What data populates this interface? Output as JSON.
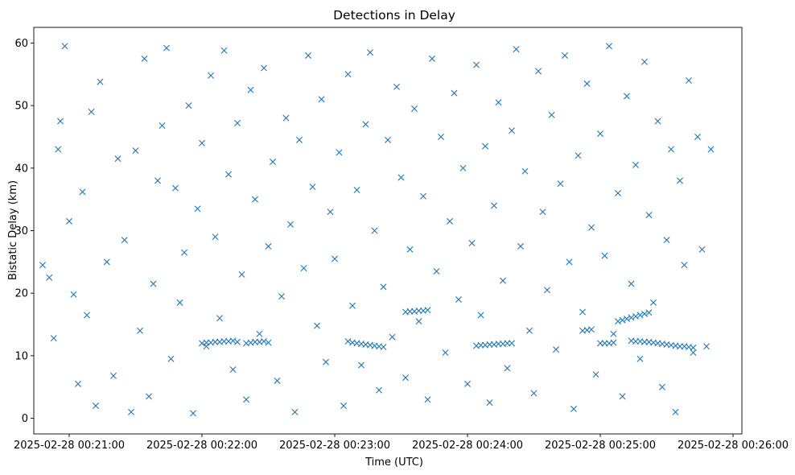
{
  "chart_data": {
    "type": "scatter",
    "title": "Detections in Delay",
    "xlabel": "Time (UTC)",
    "ylabel": "Bistatic Delay (km)",
    "marker": "x",
    "color": "#1f77b4",
    "grid": false,
    "xlim": [
      "2025-02-28 00:20:44",
      "2025-02-28 00:26:04"
    ],
    "ylim": [
      -2.5,
      62.5
    ],
    "xticks": [
      "2025-02-28 00:21:00",
      "2025-02-28 00:22:00",
      "2025-02-28 00:23:00",
      "2025-02-28 00:24:00",
      "2025-02-28 00:25:00",
      "2025-02-28 00:26:00"
    ],
    "yticks": [
      "0",
      "10",
      "20",
      "30",
      "40",
      "50",
      "60"
    ],
    "series": [
      {
        "points": [
          [
            "00:20:48",
            24.5
          ],
          [
            "00:20:51",
            22.5
          ],
          [
            "00:20:53",
            12.8
          ],
          [
            "00:20:55",
            43.0
          ],
          [
            "00:20:56",
            47.5
          ],
          [
            "00:20:58",
            59.5
          ],
          [
            "00:21:00",
            31.5
          ],
          [
            "00:21:02",
            19.8
          ],
          [
            "00:21:04",
            5.5
          ],
          [
            "00:21:06",
            36.2
          ],
          [
            "00:21:08",
            16.5
          ],
          [
            "00:21:10",
            49.0
          ],
          [
            "00:21:12",
            2.0
          ],
          [
            "00:21:14",
            53.8
          ],
          [
            "00:21:17",
            25.0
          ],
          [
            "00:21:20",
            6.8
          ],
          [
            "00:21:22",
            41.5
          ],
          [
            "00:21:25",
            28.5
          ],
          [
            "00:21:28",
            1.0
          ],
          [
            "00:21:30",
            42.8
          ],
          [
            "00:21:32",
            14.0
          ],
          [
            "00:21:34",
            57.5
          ],
          [
            "00:21:36",
            3.5
          ],
          [
            "00:21:38",
            21.5
          ],
          [
            "00:21:40",
            38.0
          ],
          [
            "00:21:42",
            46.8
          ],
          [
            "00:21:44",
            59.2
          ],
          [
            "00:21:46",
            9.5
          ],
          [
            "00:21:48",
            36.8
          ],
          [
            "00:21:50",
            18.5
          ],
          [
            "00:21:52",
            26.5
          ],
          [
            "00:21:54",
            50.0
          ],
          [
            "00:21:56",
            0.8
          ],
          [
            "00:21:58",
            33.5
          ],
          [
            "00:22:00",
            44.0
          ],
          [
            "00:22:02",
            11.5
          ],
          [
            "00:22:04",
            54.8
          ],
          [
            "00:22:06",
            29.0
          ],
          [
            "00:22:08",
            16.0
          ],
          [
            "00:22:10",
            58.8
          ],
          [
            "00:22:12",
            39.0
          ],
          [
            "00:22:14",
            7.8
          ],
          [
            "00:22:16",
            47.2
          ],
          [
            "00:22:18",
            23.0
          ],
          [
            "00:22:20",
            3.0
          ],
          [
            "00:22:22",
            52.5
          ],
          [
            "00:22:24",
            35.0
          ],
          [
            "00:22:26",
            13.5
          ],
          [
            "00:22:28",
            56.0
          ],
          [
            "00:22:30",
            27.5
          ],
          [
            "00:22:32",
            41.0
          ],
          [
            "00:22:34",
            6.0
          ],
          [
            "00:22:36",
            19.5
          ],
          [
            "00:22:38",
            48.0
          ],
          [
            "00:22:40",
            31.0
          ],
          [
            "00:22:42",
            1.0
          ],
          [
            "00:22:44",
            44.5
          ],
          [
            "00:22:46",
            24.0
          ],
          [
            "00:22:48",
            58.0
          ],
          [
            "00:22:50",
            37.0
          ],
          [
            "00:22:52",
            14.8
          ],
          [
            "00:22:54",
            51.0
          ],
          [
            "00:22:56",
            9.0
          ],
          [
            "00:22:58",
            33.0
          ],
          [
            "00:23:00",
            25.5
          ],
          [
            "00:23:02",
            42.5
          ],
          [
            "00:23:04",
            2.0
          ],
          [
            "00:23:06",
            55.0
          ],
          [
            "00:23:08",
            18.0
          ],
          [
            "00:23:10",
            36.5
          ],
          [
            "00:23:12",
            8.5
          ],
          [
            "00:23:14",
            47.0
          ],
          [
            "00:23:16",
            58.5
          ],
          [
            "00:23:18",
            30.0
          ],
          [
            "00:23:20",
            4.5
          ],
          [
            "00:23:22",
            21.0
          ],
          [
            "00:23:24",
            44.5
          ],
          [
            "00:23:26",
            13.0
          ],
          [
            "00:23:28",
            53.0
          ],
          [
            "00:23:30",
            38.5
          ],
          [
            "00:23:32",
            6.5
          ],
          [
            "00:23:34",
            27.0
          ],
          [
            "00:23:36",
            49.5
          ],
          [
            "00:23:38",
            15.5
          ],
          [
            "00:23:40",
            35.5
          ],
          [
            "00:23:42",
            3.0
          ],
          [
            "00:23:44",
            57.5
          ],
          [
            "00:23:46",
            23.5
          ],
          [
            "00:23:48",
            45.0
          ],
          [
            "00:23:50",
            10.5
          ],
          [
            "00:23:52",
            31.5
          ],
          [
            "00:23:54",
            52.0
          ],
          [
            "00:23:56",
            19.0
          ],
          [
            "00:23:58",
            40.0
          ],
          [
            "00:24:00",
            5.5
          ],
          [
            "00:24:02",
            28.0
          ],
          [
            "00:24:04",
            56.5
          ],
          [
            "00:24:06",
            16.5
          ],
          [
            "00:24:08",
            43.5
          ],
          [
            "00:24:10",
            2.5
          ],
          [
            "00:24:12",
            34.0
          ],
          [
            "00:24:14",
            50.5
          ],
          [
            "00:24:16",
            22.0
          ],
          [
            "00:24:18",
            8.0
          ],
          [
            "00:24:20",
            46.0
          ],
          [
            "00:24:22",
            59.0
          ],
          [
            "00:24:24",
            27.5
          ],
          [
            "00:24:26",
            39.5
          ],
          [
            "00:24:28",
            14.0
          ],
          [
            "00:24:30",
            4.0
          ],
          [
            "00:24:32",
            55.5
          ],
          [
            "00:24:34",
            33.0
          ],
          [
            "00:24:36",
            20.5
          ],
          [
            "00:24:38",
            48.5
          ],
          [
            "00:24:40",
            11.0
          ],
          [
            "00:24:42",
            37.5
          ],
          [
            "00:24:44",
            58.0
          ],
          [
            "00:24:46",
            25.0
          ],
          [
            "00:24:48",
            1.5
          ],
          [
            "00:24:50",
            42.0
          ],
          [
            "00:24:52",
            17.0
          ],
          [
            "00:24:54",
            53.5
          ],
          [
            "00:24:56",
            30.5
          ],
          [
            "00:24:58",
            7.0
          ],
          [
            "00:25:00",
            45.5
          ],
          [
            "00:25:02",
            26.0
          ],
          [
            "00:25:04",
            59.5
          ],
          [
            "00:25:06",
            13.5
          ],
          [
            "00:25:08",
            36.0
          ],
          [
            "00:25:10",
            3.5
          ],
          [
            "00:25:12",
            51.5
          ],
          [
            "00:25:14",
            21.5
          ],
          [
            "00:25:16",
            40.5
          ],
          [
            "00:25:18",
            9.5
          ],
          [
            "00:25:20",
            57.0
          ],
          [
            "00:25:22",
            32.5
          ],
          [
            "00:25:24",
            18.5
          ],
          [
            "00:25:26",
            47.5
          ],
          [
            "00:25:28",
            5.0
          ],
          [
            "00:25:30",
            28.5
          ],
          [
            "00:25:32",
            43.0
          ],
          [
            "00:25:34",
            1.0
          ],
          [
            "00:25:36",
            38.0
          ],
          [
            "00:25:38",
            24.5
          ],
          [
            "00:25:40",
            54.0
          ],
          [
            "00:25:42",
            10.5
          ],
          [
            "00:25:44",
            45.0
          ],
          [
            "00:25:46",
            27.0
          ],
          [
            "00:25:48",
            11.5
          ],
          [
            "00:25:50",
            43.0
          ],
          [
            "00:22:00",
            12.0
          ],
          [
            "00:22:02",
            12.1
          ],
          [
            "00:22:04",
            12.1
          ],
          [
            "00:22:06",
            12.2
          ],
          [
            "00:22:08",
            12.2
          ],
          [
            "00:22:10",
            12.3
          ],
          [
            "00:22:12",
            12.3
          ],
          [
            "00:22:14",
            12.4
          ],
          [
            "00:22:16",
            12.2
          ],
          [
            "00:22:20",
            12.0
          ],
          [
            "00:22:22",
            12.1
          ],
          [
            "00:22:24",
            12.2
          ],
          [
            "00:22:26",
            12.2
          ],
          [
            "00:22:28",
            12.3
          ],
          [
            "00:22:30",
            12.1
          ],
          [
            "00:23:06",
            12.3
          ],
          [
            "00:23:08",
            12.1
          ],
          [
            "00:23:10",
            12.0
          ],
          [
            "00:23:12",
            11.9
          ],
          [
            "00:23:14",
            11.8
          ],
          [
            "00:23:16",
            11.7
          ],
          [
            "00:23:18",
            11.6
          ],
          [
            "00:23:20",
            11.5
          ],
          [
            "00:23:22",
            11.4
          ],
          [
            "00:23:32",
            17.0
          ],
          [
            "00:23:34",
            17.1
          ],
          [
            "00:23:36",
            17.1
          ],
          [
            "00:23:38",
            17.2
          ],
          [
            "00:23:40",
            17.2
          ],
          [
            "00:23:42",
            17.3
          ],
          [
            "00:24:04",
            11.6
          ],
          [
            "00:24:06",
            11.7
          ],
          [
            "00:24:08",
            11.7
          ],
          [
            "00:24:10",
            11.8
          ],
          [
            "00:24:12",
            11.8
          ],
          [
            "00:24:14",
            11.9
          ],
          [
            "00:24:16",
            11.9
          ],
          [
            "00:24:18",
            12.0
          ],
          [
            "00:24:20",
            12.0
          ],
          [
            "00:24:52",
            14.0
          ],
          [
            "00:24:54",
            14.1
          ],
          [
            "00:24:56",
            14.2
          ],
          [
            "00:25:00",
            12.0
          ],
          [
            "00:25:02",
            12.0
          ],
          [
            "00:25:04",
            12.0
          ],
          [
            "00:25:06",
            12.1
          ],
          [
            "00:25:08",
            15.5
          ],
          [
            "00:25:10",
            15.7
          ],
          [
            "00:25:12",
            15.9
          ],
          [
            "00:25:14",
            16.1
          ],
          [
            "00:25:16",
            16.3
          ],
          [
            "00:25:18",
            16.5
          ],
          [
            "00:25:20",
            16.7
          ],
          [
            "00:25:22",
            16.9
          ],
          [
            "00:25:14",
            12.4
          ],
          [
            "00:25:16",
            12.3
          ],
          [
            "00:25:18",
            12.3
          ],
          [
            "00:25:20",
            12.2
          ],
          [
            "00:25:22",
            12.2
          ],
          [
            "00:25:24",
            12.1
          ],
          [
            "00:25:26",
            12.0
          ],
          [
            "00:25:28",
            11.9
          ],
          [
            "00:25:30",
            11.8
          ],
          [
            "00:25:32",
            11.7
          ],
          [
            "00:25:34",
            11.6
          ],
          [
            "00:25:36",
            11.5
          ],
          [
            "00:25:38",
            11.5
          ],
          [
            "00:25:40",
            11.4
          ],
          [
            "00:25:42",
            11.3
          ]
        ]
      }
    ]
  }
}
